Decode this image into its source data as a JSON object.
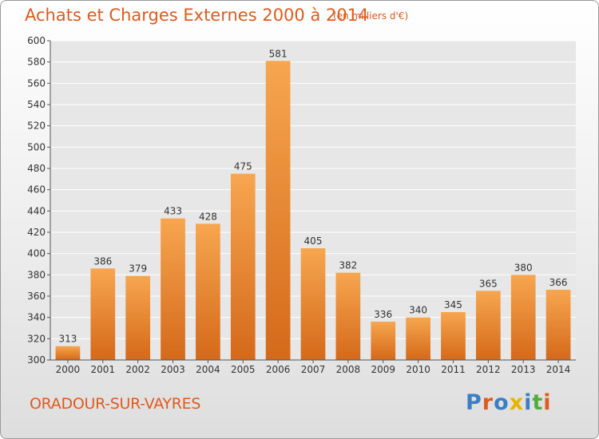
{
  "title": "Achats et Charges Externes 2000 à 2014",
  "subtitle": "(en milliers d'€)",
  "location": "ORADOUR-SUR-VAYRES",
  "logo": {
    "text": "Proxiti",
    "colors": [
      "#3a7fc4",
      "#e05a1c",
      "#3a7fc4",
      "#e8b400",
      "#3a7fc4",
      "#4fae3c",
      "#e05a1c"
    ]
  },
  "colors": {
    "bar_top": "#f7a64f",
    "bar_bottom": "#d4691a",
    "title": "#e05a1c"
  },
  "chart_data": {
    "type": "bar",
    "categories": [
      "2000",
      "2001",
      "2002",
      "2003",
      "2004",
      "2005",
      "2006",
      "2007",
      "2008",
      "2009",
      "2010",
      "2011",
      "2012",
      "2013",
      "2014"
    ],
    "values": [
      313,
      386,
      379,
      433,
      428,
      475,
      581,
      405,
      382,
      336,
      340,
      345,
      365,
      380,
      366
    ],
    "ylim": [
      300,
      600
    ],
    "yticks": [
      300,
      320,
      340,
      360,
      380,
      400,
      420,
      440,
      460,
      480,
      500,
      520,
      540,
      560,
      580,
      600
    ],
    "grid": true
  }
}
